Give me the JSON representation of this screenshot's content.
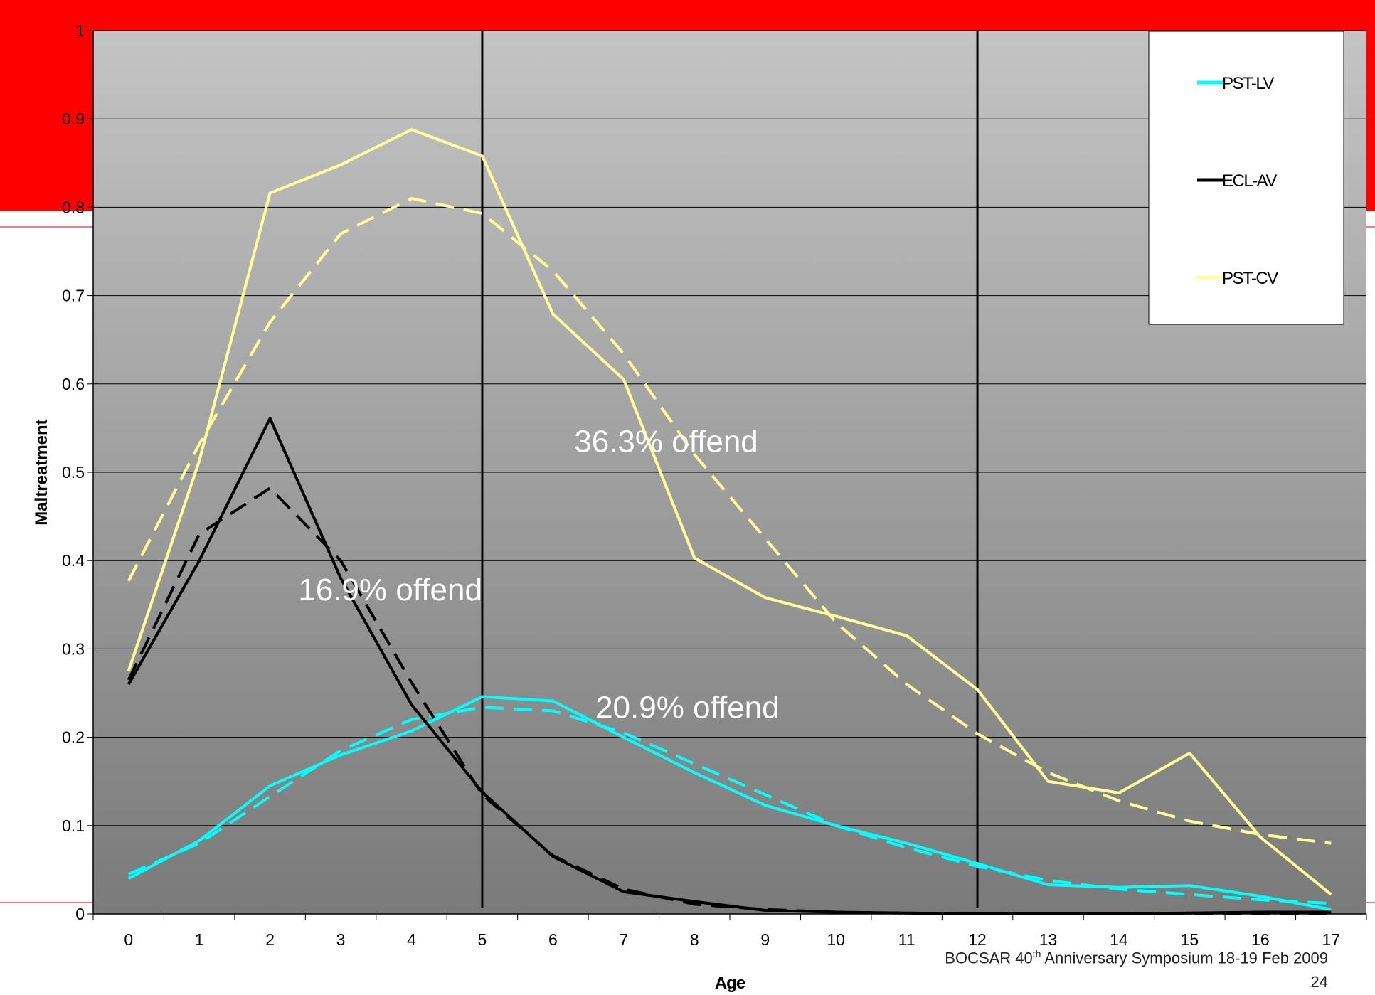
{
  "theme": {
    "banner_color": "#ff0000",
    "accent_line_color": "#f08080",
    "plot_gradient_top": "#c4c4c4",
    "plot_gradient_bottom": "#7a7a7a"
  },
  "footer": {
    "event_pre": "BOCSAR 40",
    "event_sup": "th",
    "event_post": " Anniversary Symposium 18-19 Feb 2009",
    "slide_number": "24"
  },
  "chart_data": {
    "type": "line",
    "xlabel": "Age",
    "ylabel": "Maltreatment",
    "categories": [
      "0",
      "1",
      "2",
      "3",
      "4",
      "5",
      "6",
      "7",
      "8",
      "9",
      "10",
      "11",
      "12",
      "13",
      "14",
      "15",
      "16",
      "17"
    ],
    "ylim": [
      0,
      1
    ],
    "yticks": [
      "0",
      "0.1",
      "0.2",
      "0.3",
      "0.4",
      "0.5",
      "0.6",
      "0.7",
      "0.8",
      "0.9",
      "1"
    ],
    "grid": true,
    "legend_position": "top-right",
    "series": [
      {
        "name": "PST-LV",
        "color": "#00ffff",
        "style": "solid",
        "values": [
          0.04,
          0.083,
          0.145,
          0.18,
          0.207,
          0.246,
          0.241,
          0.2,
          0.16,
          0.123,
          0.1,
          0.08,
          0.057,
          0.033,
          0.03,
          0.032,
          0.02,
          0.005
        ]
      },
      {
        "name": "",
        "color": "#00ffff",
        "style": "dashed",
        "values": [
          0.045,
          0.08,
          0.133,
          0.185,
          0.22,
          0.234,
          0.23,
          0.205,
          0.17,
          0.135,
          0.1,
          0.075,
          0.054,
          0.038,
          0.028,
          0.022,
          0.016,
          0.012
        ]
      },
      {
        "name": "ECL-AV",
        "color": "#000000",
        "style": "solid",
        "values": [
          0.26,
          0.4,
          0.561,
          0.38,
          0.237,
          0.138,
          0.065,
          0.025,
          0.014,
          0.004,
          0.002,
          0.001,
          0.0,
          0.0,
          0.0,
          0.001,
          0.002,
          0.002
        ]
      },
      {
        "name": "",
        "color": "#000000",
        "style": "dashed",
        "values": [
          0.265,
          0.43,
          0.482,
          0.4,
          0.262,
          0.135,
          0.066,
          0.028,
          0.011,
          0.005,
          0.002,
          0.001,
          0.0,
          0.0,
          0.0,
          0.0,
          0.0,
          0.0
        ]
      },
      {
        "name": "PST-CV",
        "color": "#ffff99",
        "style": "solid",
        "values": [
          0.275,
          0.513,
          0.816,
          0.848,
          0.888,
          0.858,
          0.679,
          0.605,
          0.403,
          0.358,
          0.337,
          0.315,
          0.254,
          0.15,
          0.137,
          0.182,
          0.087,
          0.022
        ]
      },
      {
        "name": "",
        "color": "#ffff99",
        "style": "dashed",
        "values": [
          0.377,
          0.532,
          0.67,
          0.77,
          0.81,
          0.793,
          0.728,
          0.634,
          0.52,
          0.425,
          0.33,
          0.26,
          0.204,
          0.16,
          0.128,
          0.105,
          0.09,
          0.08
        ]
      }
    ],
    "reference_lines_x": [
      5,
      12
    ],
    "annotations": [
      {
        "text": "16.9% offend",
        "x": 3.7,
        "y": 0.355
      },
      {
        "text": "20.9% offend",
        "x": 7.9,
        "y": 0.222
      },
      {
        "text": "36.3% offend",
        "x": 7.6,
        "y": 0.523
      }
    ]
  }
}
